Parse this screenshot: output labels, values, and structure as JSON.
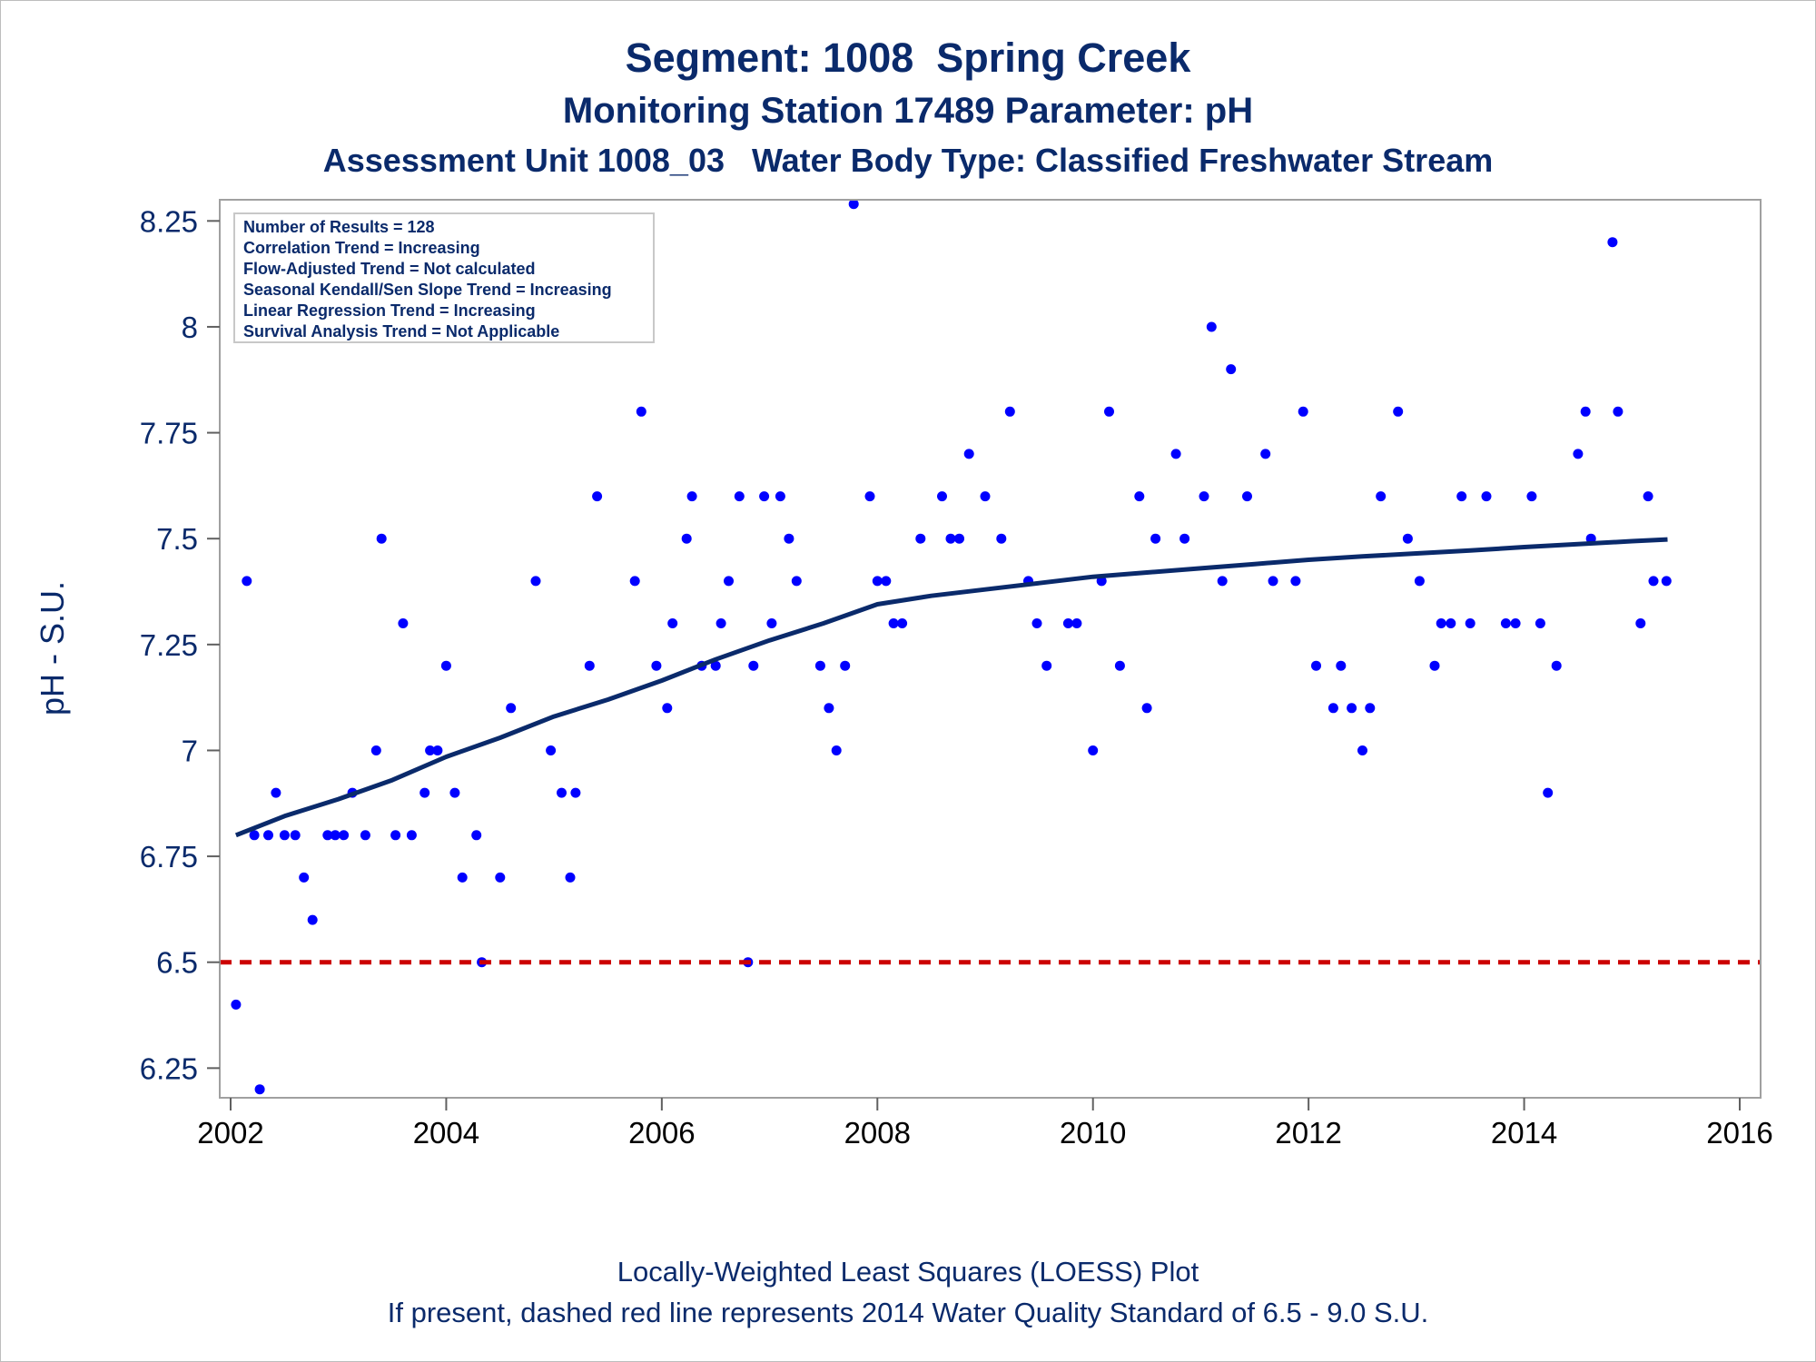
{
  "titles": {
    "line1": "Segment: 1008  Spring Creek",
    "line2": "Monitoring Station 17489 Parameter: pH",
    "line3": "Assessment Unit 1008_03   Water Body Type: Classified Freshwater Stream"
  },
  "footnotes": {
    "line1": "Locally-Weighted Least Squares (LOESS) Plot",
    "line2": "If present, dashed red line represents 2014 Water Quality Standard of 6.5 - 9.0 S.U."
  },
  "stats_box": [
    "Number of Results = 128",
    "Correlation Trend = Increasing",
    "Flow-Adjusted Trend = Not calculated",
    "Seasonal Kendall/Sen Slope Trend = Increasing",
    "Linear Regression Trend = Increasing",
    "Survival Analysis Trend = Not Applicable"
  ],
  "colors": {
    "points": "#0000ff",
    "loess": "#0a2a6b",
    "standard_line": "#cc0000",
    "text": "#0a2a6b",
    "frame": "#a0a0a0"
  },
  "chart_data": {
    "type": "scatter",
    "xlabel": "",
    "ylabel": "pH - S.U.",
    "xlim": [
      2002,
      2016
    ],
    "ylim": [
      6.18,
      8.3
    ],
    "x_ticks": [
      2002,
      2004,
      2006,
      2008,
      2010,
      2012,
      2014,
      2016
    ],
    "y_ticks": [
      6.25,
      6.5,
      6.75,
      7,
      7.25,
      7.5,
      7.75,
      8,
      8.25
    ],
    "y_tick_labels": [
      "6.25",
      "6.5",
      "6.75",
      "7",
      "7.25",
      "7.5",
      "7.75",
      "8",
      "8.25"
    ],
    "grid": false,
    "legend_position": "top-left",
    "reference_line": {
      "y": 6.5,
      "style": "dashed"
    },
    "points": [
      [
        2002.05,
        6.4
      ],
      [
        2002.15,
        7.4
      ],
      [
        2002.22,
        6.8
      ],
      [
        2002.27,
        6.2
      ],
      [
        2002.35,
        6.8
      ],
      [
        2002.42,
        6.9
      ],
      [
        2002.5,
        6.8
      ],
      [
        2002.6,
        6.8
      ],
      [
        2002.68,
        6.7
      ],
      [
        2002.76,
        6.6
      ],
      [
        2002.9,
        6.8
      ],
      [
        2002.97,
        6.8
      ],
      [
        2003.05,
        6.8
      ],
      [
        2003.13,
        6.9
      ],
      [
        2003.25,
        6.8
      ],
      [
        2003.35,
        7.0
      ],
      [
        2003.4,
        7.5
      ],
      [
        2003.53,
        6.8
      ],
      [
        2003.6,
        7.3
      ],
      [
        2003.68,
        6.8
      ],
      [
        2003.8,
        6.9
      ],
      [
        2003.85,
        7.0
      ],
      [
        2003.92,
        7.0
      ],
      [
        2004.0,
        7.2
      ],
      [
        2004.08,
        6.9
      ],
      [
        2004.15,
        6.7
      ],
      [
        2004.28,
        6.8
      ],
      [
        2004.33,
        6.5
      ],
      [
        2004.5,
        6.7
      ],
      [
        2004.6,
        7.1
      ],
      [
        2004.83,
        7.4
      ],
      [
        2004.97,
        7.0
      ],
      [
        2005.07,
        6.9
      ],
      [
        2005.15,
        6.7
      ],
      [
        2005.2,
        6.9
      ],
      [
        2005.33,
        7.2
      ],
      [
        2005.4,
        7.6
      ],
      [
        2005.75,
        7.4
      ],
      [
        2005.81,
        7.8
      ],
      [
        2005.95,
        7.2
      ],
      [
        2006.05,
        7.1
      ],
      [
        2006.1,
        7.3
      ],
      [
        2006.23,
        7.5
      ],
      [
        2006.28,
        7.6
      ],
      [
        2006.37,
        7.2
      ],
      [
        2006.5,
        7.2
      ],
      [
        2006.55,
        7.3
      ],
      [
        2006.62,
        7.4
      ],
      [
        2006.72,
        7.6
      ],
      [
        2006.8,
        6.5
      ],
      [
        2006.85,
        7.2
      ],
      [
        2006.95,
        7.6
      ],
      [
        2007.02,
        7.3
      ],
      [
        2007.1,
        7.6
      ],
      [
        2007.18,
        7.5
      ],
      [
        2007.25,
        7.4
      ],
      [
        2007.47,
        7.2
      ],
      [
        2007.55,
        7.1
      ],
      [
        2007.62,
        7.0
      ],
      [
        2007.7,
        7.2
      ],
      [
        2007.78,
        8.29
      ],
      [
        2007.93,
        7.6
      ],
      [
        2008.0,
        7.4
      ],
      [
        2008.08,
        7.4
      ],
      [
        2008.15,
        7.3
      ],
      [
        2008.23,
        7.3
      ],
      [
        2008.4,
        7.5
      ],
      [
        2008.6,
        7.6
      ],
      [
        2008.68,
        7.5
      ],
      [
        2008.76,
        7.5
      ],
      [
        2008.85,
        7.7
      ],
      [
        2009.0,
        7.6
      ],
      [
        2009.15,
        7.5
      ],
      [
        2009.23,
        7.8
      ],
      [
        2009.4,
        7.4
      ],
      [
        2009.48,
        7.3
      ],
      [
        2009.57,
        7.2
      ],
      [
        2009.77,
        7.3
      ],
      [
        2009.85,
        7.3
      ],
      [
        2010.0,
        7.0
      ],
      [
        2010.08,
        7.4
      ],
      [
        2010.15,
        7.8
      ],
      [
        2010.25,
        7.2
      ],
      [
        2010.43,
        7.6
      ],
      [
        2010.5,
        7.1
      ],
      [
        2010.58,
        7.5
      ],
      [
        2010.77,
        7.7
      ],
      [
        2010.85,
        7.5
      ],
      [
        2011.03,
        7.6
      ],
      [
        2011.1,
        8.0
      ],
      [
        2011.2,
        7.4
      ],
      [
        2011.28,
        7.9
      ],
      [
        2011.43,
        7.6
      ],
      [
        2011.6,
        7.7
      ],
      [
        2011.67,
        7.4
      ],
      [
        2011.88,
        7.4
      ],
      [
        2011.95,
        7.8
      ],
      [
        2012.07,
        7.2
      ],
      [
        2012.23,
        7.1
      ],
      [
        2012.3,
        7.2
      ],
      [
        2012.4,
        7.1
      ],
      [
        2012.5,
        7.0
      ],
      [
        2012.57,
        7.1
      ],
      [
        2012.67,
        7.6
      ],
      [
        2012.83,
        7.8
      ],
      [
        2012.92,
        7.5
      ],
      [
        2013.03,
        7.4
      ],
      [
        2013.17,
        7.2
      ],
      [
        2013.23,
        7.3
      ],
      [
        2013.32,
        7.3
      ],
      [
        2013.42,
        7.6
      ],
      [
        2013.5,
        7.3
      ],
      [
        2013.65,
        7.6
      ],
      [
        2013.83,
        7.3
      ],
      [
        2013.92,
        7.3
      ],
      [
        2014.07,
        7.6
      ],
      [
        2014.15,
        7.3
      ],
      [
        2014.22,
        6.9
      ],
      [
        2014.3,
        7.2
      ],
      [
        2014.5,
        7.7
      ],
      [
        2014.57,
        7.8
      ],
      [
        2014.62,
        7.5
      ],
      [
        2014.82,
        8.2
      ],
      [
        2014.87,
        7.8
      ],
      [
        2015.08,
        7.3
      ],
      [
        2015.15,
        7.6
      ],
      [
        2015.2,
        7.4
      ],
      [
        2015.32,
        7.4
      ]
    ],
    "loess_curve": [
      [
        2002.05,
        6.8
      ],
      [
        2002.5,
        6.845
      ],
      [
        2003.0,
        6.885
      ],
      [
        2003.5,
        6.93
      ],
      [
        2004.0,
        6.985
      ],
      [
        2004.5,
        7.03
      ],
      [
        2005.0,
        7.08
      ],
      [
        2005.5,
        7.12
      ],
      [
        2006.0,
        7.165
      ],
      [
        2006.5,
        7.215
      ],
      [
        2007.0,
        7.26
      ],
      [
        2007.5,
        7.3
      ],
      [
        2008.0,
        7.345
      ],
      [
        2008.5,
        7.365
      ],
      [
        2009.0,
        7.38
      ],
      [
        2009.5,
        7.395
      ],
      [
        2010.0,
        7.41
      ],
      [
        2010.5,
        7.42
      ],
      [
        2011.0,
        7.43
      ],
      [
        2011.5,
        7.44
      ],
      [
        2012.0,
        7.45
      ],
      [
        2012.5,
        7.458
      ],
      [
        2013.0,
        7.465
      ],
      [
        2013.5,
        7.472
      ],
      [
        2014.0,
        7.48
      ],
      [
        2014.5,
        7.487
      ],
      [
        2015.0,
        7.494
      ],
      [
        2015.33,
        7.498
      ]
    ]
  }
}
